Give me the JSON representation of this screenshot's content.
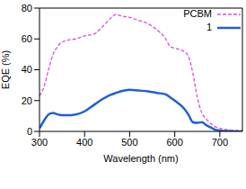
{
  "chart_data": {
    "type": "line",
    "x_label": "Wavelength (nm)",
    "y_label": "EQE (%)",
    "x": [
      300,
      310,
      320,
      330,
      340,
      350,
      360,
      380,
      400,
      420,
      440,
      460,
      470,
      480,
      500,
      520,
      540,
      560,
      580,
      590,
      600,
      620,
      630,
      640,
      650,
      660,
      670,
      680,
      690,
      700,
      720,
      750
    ],
    "series": [
      {
        "name": "PCBM",
        "color": "#d94fd9",
        "line_style": "dashed",
        "values": [
          23,
          29,
          40,
          50,
          55,
          58,
          59,
          60,
          62,
          63,
          68,
          74,
          76,
          75,
          74,
          72,
          70,
          66,
          60,
          55,
          54,
          52,
          49,
          38,
          22,
          12,
          8,
          5,
          3,
          2,
          1,
          0.5
        ]
      },
      {
        "name": "1",
        "color": "#1f5fd6",
        "line_style": "solid",
        "values": [
          2,
          7,
          11,
          12,
          11,
          10.5,
          10.5,
          11,
          13,
          17,
          21,
          24,
          25,
          26,
          27,
          26.5,
          26,
          25,
          24,
          22,
          20,
          15,
          11,
          6,
          5.5,
          6,
          4,
          2.5,
          1,
          0.5,
          0.2,
          0
        ]
      }
    ],
    "xlim": [
      300,
      750
    ],
    "xticks": [
      300,
      400,
      500,
      600,
      700
    ],
    "ylim": [
      0,
      80
    ],
    "yticks": [
      0,
      20,
      40,
      60,
      80
    ],
    "legend": "upper right",
    "grid": false
  }
}
